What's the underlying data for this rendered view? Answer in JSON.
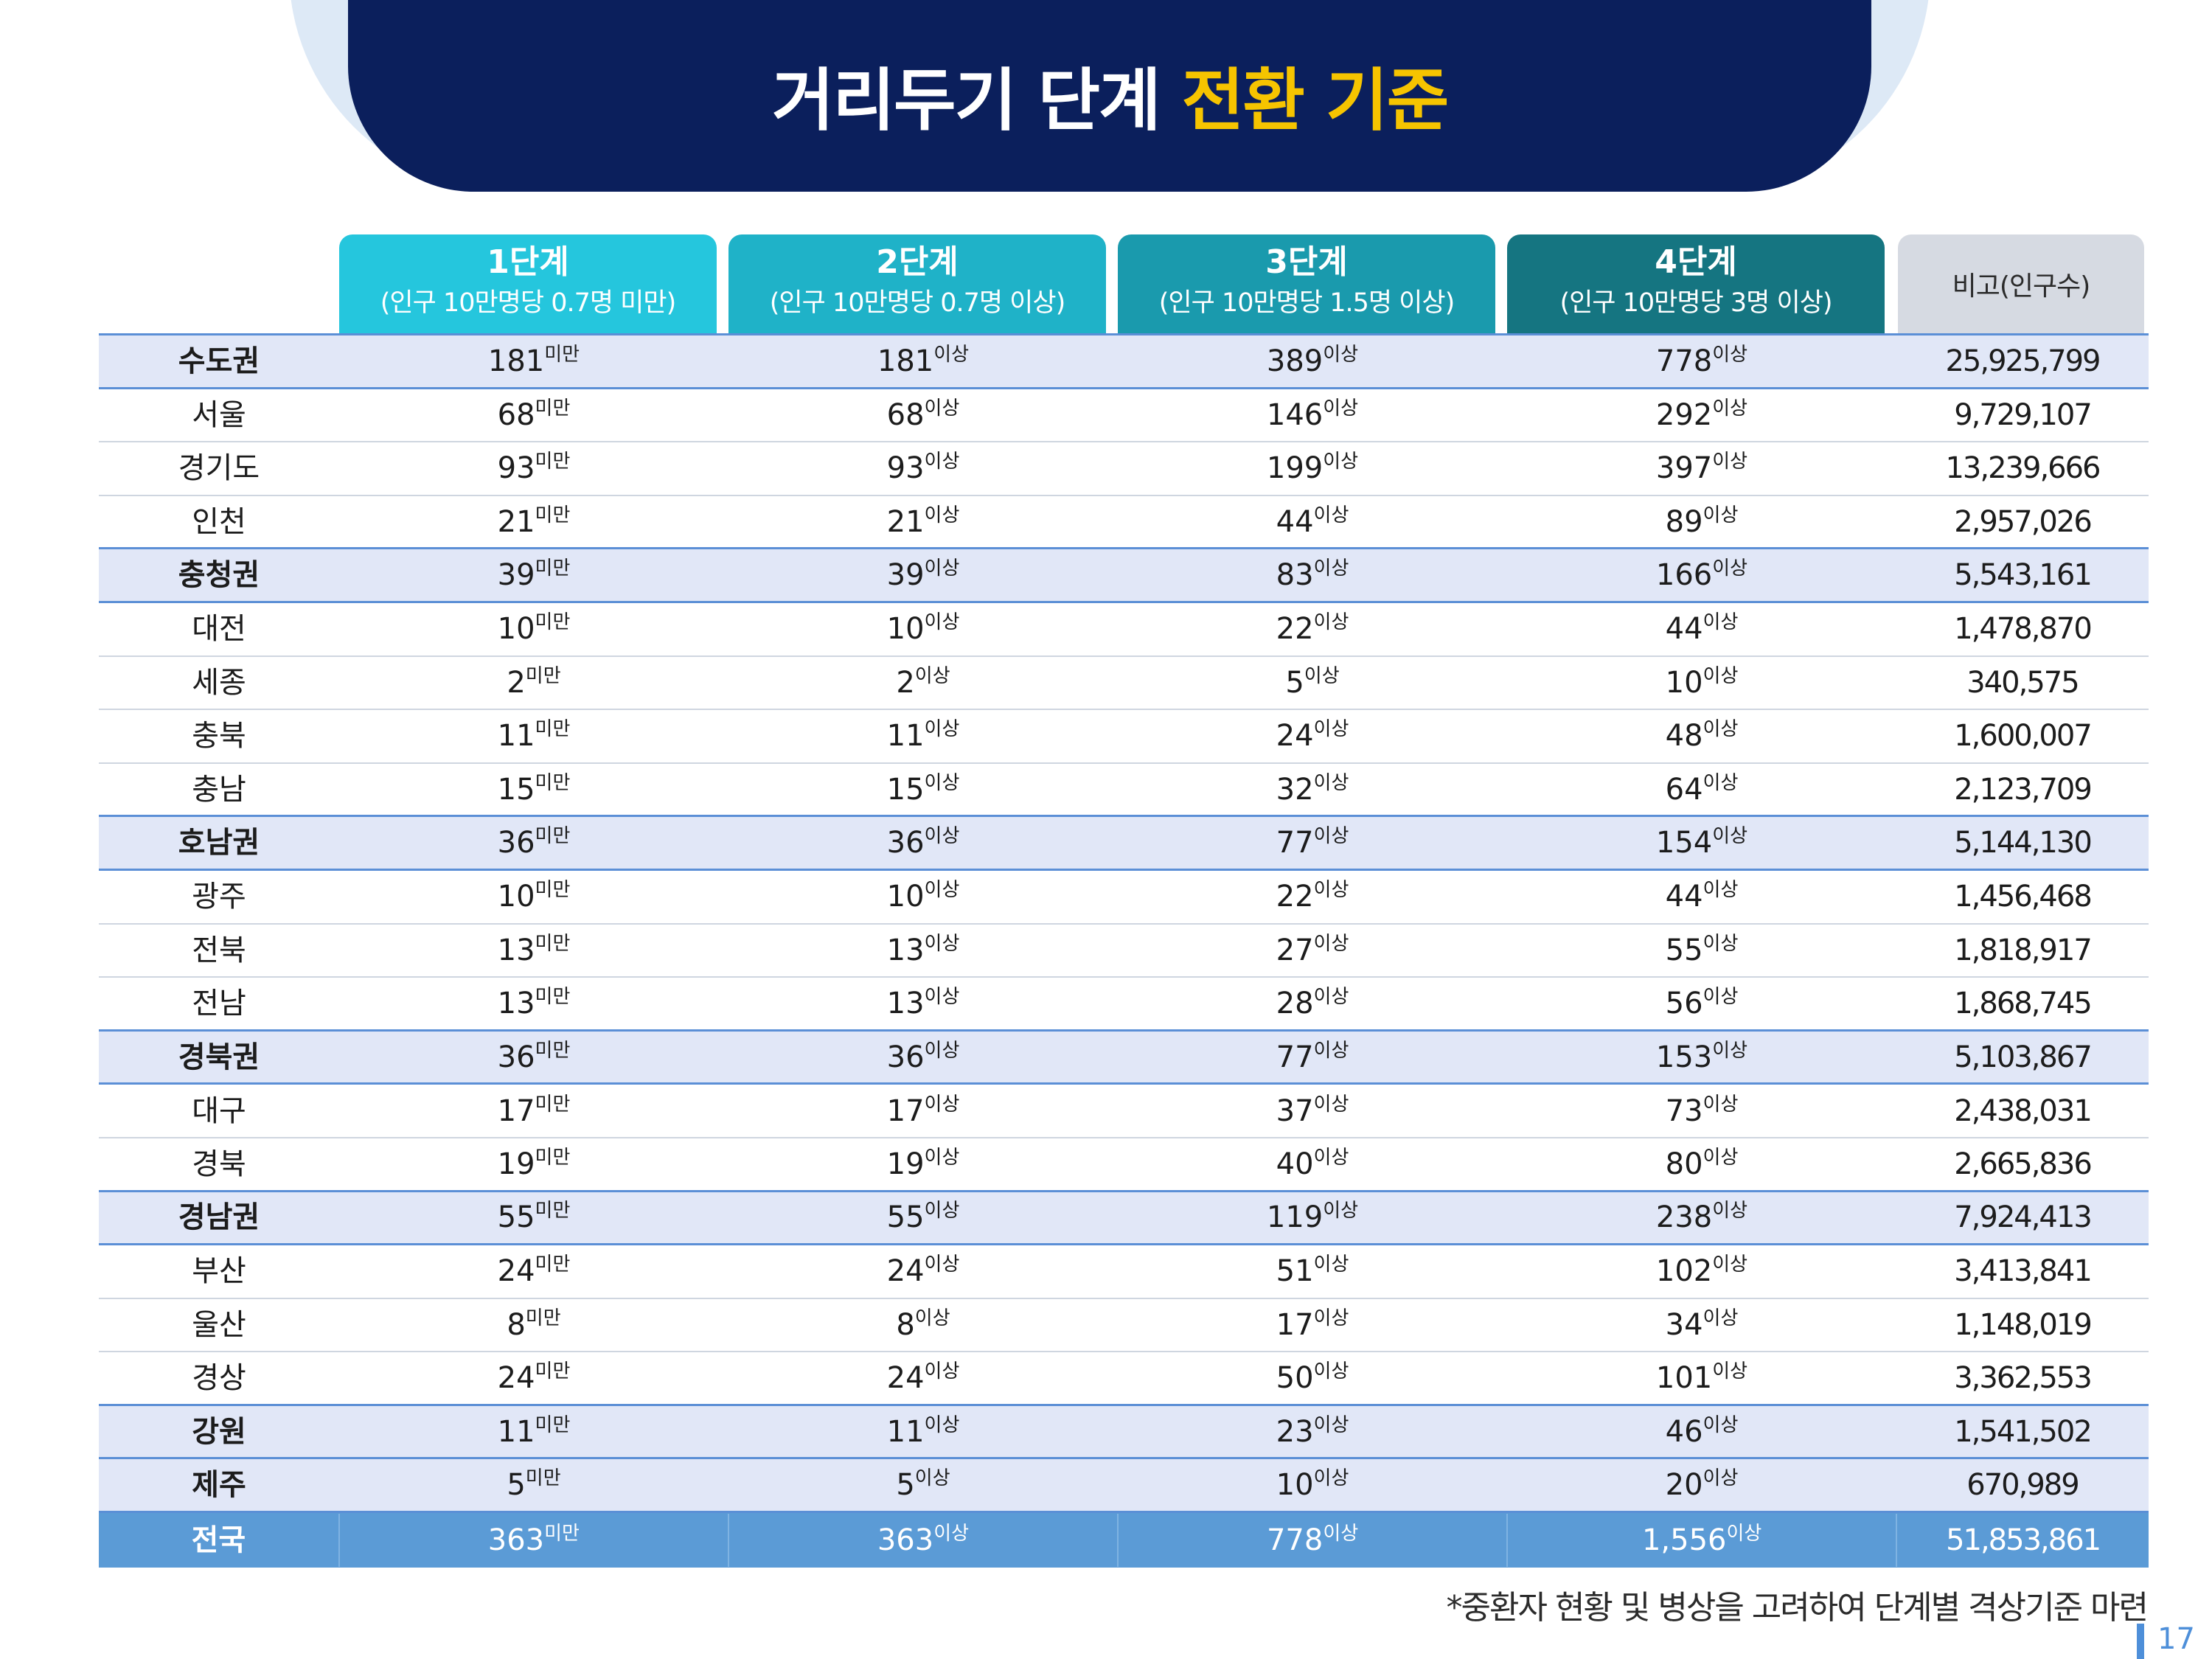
{
  "title": {
    "main": "거리두기 단계 ",
    "highlight": "전환 기준"
  },
  "columns": [
    {
      "stage": "1단계",
      "cond": "(인구 10만명당 0.7명 미만)"
    },
    {
      "stage": "2단계",
      "cond": "(인구 10만명당 0.7명 이상)"
    },
    {
      "stage": "3단계",
      "cond": "(인구 10만명당 1.5명 이상)"
    },
    {
      "stage": "4단계",
      "cond": "(인구 10만명당 3명 이상)"
    },
    {
      "stage": "비고(인구수)"
    }
  ],
  "suffix": {
    "below": "미만",
    "above": "이상"
  },
  "rows": [
    {
      "name": "수도권",
      "type": "region",
      "v": [
        "181",
        "181",
        "389",
        "778"
      ],
      "pop": "25,925,799"
    },
    {
      "name": "서울",
      "type": "sub",
      "v": [
        "68",
        "68",
        "146",
        "292"
      ],
      "pop": "9,729,107"
    },
    {
      "name": "경기도",
      "type": "sub",
      "v": [
        "93",
        "93",
        "199",
        "397"
      ],
      "pop": "13,239,666"
    },
    {
      "name": "인천",
      "type": "sub",
      "v": [
        "21",
        "21",
        "44",
        "89"
      ],
      "pop": "2,957,026"
    },
    {
      "name": "충청권",
      "type": "region",
      "v": [
        "39",
        "39",
        "83",
        "166"
      ],
      "pop": "5,543,161"
    },
    {
      "name": "대전",
      "type": "sub",
      "v": [
        "10",
        "10",
        "22",
        "44"
      ],
      "pop": "1,478,870"
    },
    {
      "name": "세종",
      "type": "sub",
      "v": [
        "2",
        "2",
        "5",
        "10"
      ],
      "pop": "340,575"
    },
    {
      "name": "충북",
      "type": "sub",
      "v": [
        "11",
        "11",
        "24",
        "48"
      ],
      "pop": "1,600,007"
    },
    {
      "name": "충남",
      "type": "sub",
      "v": [
        "15",
        "15",
        "32",
        "64"
      ],
      "pop": "2,123,709"
    },
    {
      "name": "호남권",
      "type": "region",
      "v": [
        "36",
        "36",
        "77",
        "154"
      ],
      "pop": "5,144,130"
    },
    {
      "name": "광주",
      "type": "sub",
      "v": [
        "10",
        "10",
        "22",
        "44"
      ],
      "pop": "1,456,468"
    },
    {
      "name": "전북",
      "type": "sub",
      "v": [
        "13",
        "13",
        "27",
        "55"
      ],
      "pop": "1,818,917"
    },
    {
      "name": "전남",
      "type": "sub",
      "v": [
        "13",
        "13",
        "28",
        "56"
      ],
      "pop": "1,868,745"
    },
    {
      "name": "경북권",
      "type": "region",
      "v": [
        "36",
        "36",
        "77",
        "153"
      ],
      "pop": "5,103,867"
    },
    {
      "name": "대구",
      "type": "sub",
      "v": [
        "17",
        "17",
        "37",
        "73"
      ],
      "pop": "2,438,031"
    },
    {
      "name": "경북",
      "type": "sub",
      "v": [
        "19",
        "19",
        "40",
        "80"
      ],
      "pop": "2,665,836"
    },
    {
      "name": "경남권",
      "type": "region",
      "v": [
        "55",
        "55",
        "119",
        "238"
      ],
      "pop": "7,924,413"
    },
    {
      "name": "부산",
      "type": "sub",
      "v": [
        "24",
        "24",
        "51",
        "102"
      ],
      "pop": "3,413,841"
    },
    {
      "name": "울산",
      "type": "sub",
      "v": [
        "8",
        "8",
        "17",
        "34"
      ],
      "pop": "1,148,019"
    },
    {
      "name": "경상",
      "type": "sub",
      "v": [
        "24",
        "24",
        "50",
        "101"
      ],
      "pop": "3,362,553"
    },
    {
      "name": "강원",
      "type": "region",
      "v": [
        "11",
        "11",
        "23",
        "46"
      ],
      "pop": "1,541,502"
    },
    {
      "name": "제주",
      "type": "region",
      "v": [
        "5",
        "5",
        "10",
        "20"
      ],
      "pop": "670,989"
    },
    {
      "name": "전국",
      "type": "total",
      "v": [
        "363",
        "363",
        "778",
        "1,556"
      ],
      "pop": "51,853,861"
    }
  ],
  "footnote": "*중환자 현황 및 병상을 고려하여 단계별 격상기준 마련",
  "page_number": "17"
}
